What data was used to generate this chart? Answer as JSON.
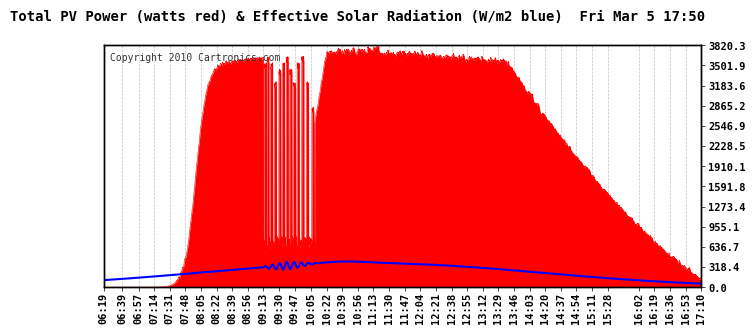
{
  "title": "Total PV Power (watts red) & Effective Solar Radiation (W/m2 blue)  Fri Mar 5 17:50",
  "copyright": "Copyright 2010 Cartronics.com",
  "background_color": "#ffffff",
  "plot_bg_color": "#ffffff",
  "grid_color": "#bbbbbb",
  "y_min": 0.0,
  "y_max": 3820.3,
  "y_ticks": [
    0.0,
    318.4,
    636.7,
    955.1,
    1273.4,
    1591.8,
    1910.1,
    2228.5,
    2546.9,
    2865.2,
    3183.6,
    3501.9,
    3820.3
  ],
  "x_labels": [
    "06:19",
    "06:39",
    "06:57",
    "07:14",
    "07:31",
    "07:48",
    "08:05",
    "08:22",
    "08:39",
    "08:56",
    "09:13",
    "09:30",
    "09:47",
    "10:05",
    "10:22",
    "10:39",
    "10:56",
    "11:13",
    "11:30",
    "11:47",
    "12:04",
    "12:21",
    "12:38",
    "12:55",
    "13:12",
    "13:29",
    "13:46",
    "14:03",
    "14:20",
    "14:37",
    "14:54",
    "15:11",
    "15:28",
    "16:02",
    "16:19",
    "16:36",
    "16:53",
    "17:10"
  ],
  "pv_color": "#ff0000",
  "solar_color": "#0000ff",
  "title_fontsize": 10,
  "tick_fontsize": 7.5,
  "copyright_fontsize": 7
}
